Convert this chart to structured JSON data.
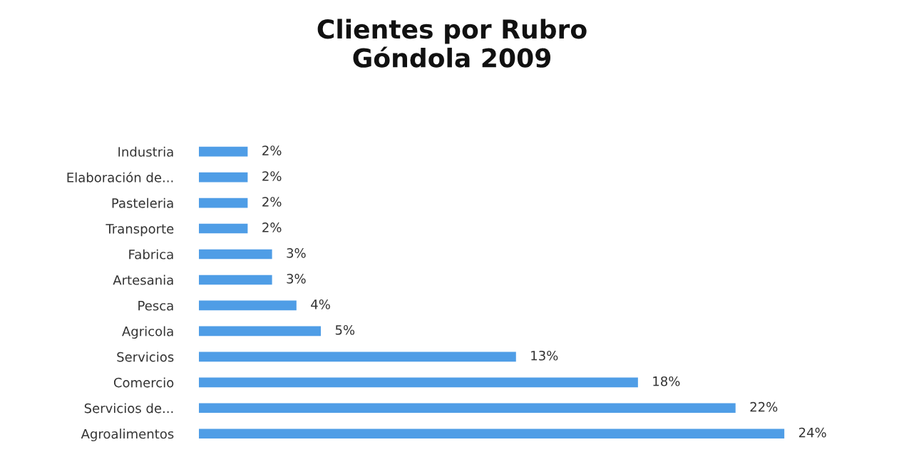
{
  "chart_data": {
    "type": "bar",
    "orientation": "horizontal",
    "title": "Clientes por Rubro\nGóndola 2009",
    "categories": [
      "Industria",
      "Elaboración de...",
      "Pasteleria",
      "Transporte",
      "Fabrica",
      "Artesania",
      "Pesca",
      "Agricola",
      "Servicios",
      "Comercio",
      "Servicios de...",
      "Agroalimentos"
    ],
    "values": [
      2,
      2,
      2,
      2,
      3,
      3,
      4,
      5,
      13,
      18,
      22,
      24
    ],
    "value_labels": [
      "2%",
      "2%",
      "2%",
      "2%",
      "3%",
      "3%",
      "4%",
      "5%",
      "13%",
      "18%",
      "22%",
      "24%"
    ],
    "color": "#4f9de6",
    "grid": false,
    "legend": false
  }
}
